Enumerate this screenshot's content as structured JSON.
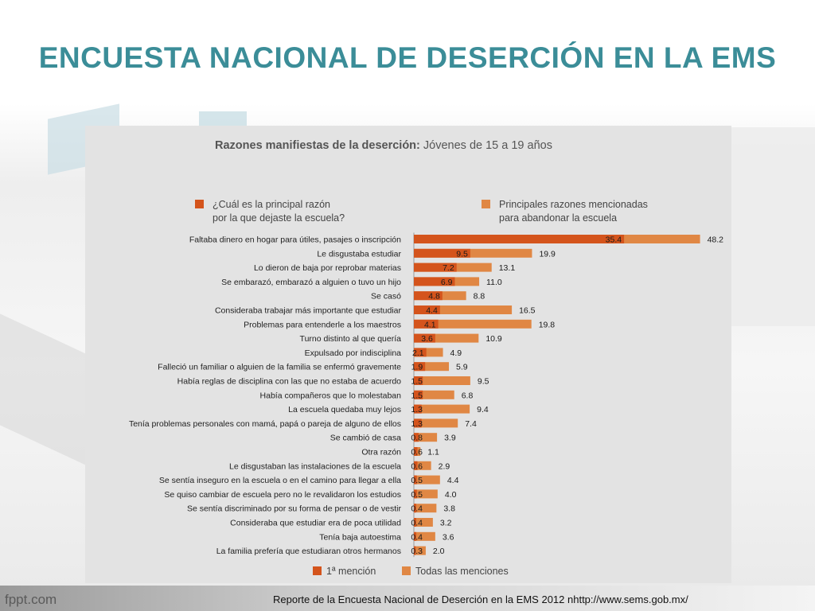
{
  "slide": {
    "title": "ENCUESTA NACIONAL DE DESERCIÓN EN LA EMS",
    "footer_logo": "fppt.com",
    "footer_source": "Reporte de la Encuesta Nacional de Deserción en la EMS 2012 nhttp://www.sems.gob.mx/"
  },
  "colors": {
    "title": "#3b8d98",
    "panel_background": "#e3e3e3",
    "series_first": "#d4541c",
    "series_all": "#e08744"
  },
  "chart_data": {
    "type": "bar",
    "orientation": "horizontal",
    "title_bold": "Razones manifiestas de la deserción:",
    "title_rest": "Jóvenes de 15 a 19 años",
    "legend_top": [
      {
        "line1": "¿Cuál es la principal razón",
        "line2": "por la que dejaste la escuela?"
      },
      {
        "line1": "Principales razones mencionadas",
        "line2": "para abandonar la escuela"
      }
    ],
    "legend_bottom": [
      "1ª mención",
      "Todas las menciones"
    ],
    "series": [
      {
        "name": "1ª mención",
        "color": "#d4541c",
        "values": [
          35.4,
          9.5,
          7.2,
          6.9,
          4.8,
          4.4,
          4.1,
          3.6,
          2.1,
          1.9,
          1.5,
          1.5,
          1.3,
          1.3,
          0.8,
          0.6,
          0.6,
          0.5,
          0.5,
          0.4,
          0.4,
          0.4,
          0.3
        ],
        "labels": [
          "35.4",
          "9.5",
          "7.2",
          "6.9",
          "4.8",
          "4.4",
          "4.1",
          "3.6",
          "2.1",
          "1.9",
          "1.5",
          "1.5",
          "1.3",
          "1.3",
          "0.8",
          "0.6",
          "0.6",
          "0.5",
          "0.5",
          "0.4",
          "0.4",
          "0.4",
          "0.3"
        ]
      },
      {
        "name": "Todas las menciones",
        "color": "#e08744",
        "values": [
          48.2,
          19.9,
          13.1,
          11.0,
          8.8,
          16.5,
          19.8,
          10.9,
          4.9,
          5.9,
          9.5,
          6.8,
          9.4,
          7.4,
          3.9,
          1.1,
          2.9,
          4.4,
          4.0,
          3.8,
          3.2,
          3.6,
          2.0
        ],
        "labels": [
          "48.2",
          "19.9",
          "13.1",
          "11.0",
          "8.8",
          "16.5",
          "19.8",
          "10.9",
          "4.9",
          "5.9",
          "9.5",
          "6.8",
          "9.4",
          "7.4",
          "3.9",
          "1.1",
          "2.9",
          "4.4",
          "4.0",
          "3.8",
          "3.2",
          "3.6",
          "2.0"
        ]
      }
    ],
    "categories": [
      "Faltaba dinero en hogar para útiles, pasajes o inscripción",
      "Le disgustaba estudiar",
      "Lo dieron de baja por reprobar materias",
      "Se embarazó, embarazó a alguien o tuvo un hijo",
      "Se casó",
      "Consideraba trabajar más importante que estudiar",
      "Problemas para entenderle a los maestros",
      "Turno distinto al que quería",
      "Expulsado por indisciplina",
      "Falleció un familiar o alguien de la familia se enfermó gravemente",
      "Había reglas de disciplina con las que no estaba de acuerdo",
      "Había compañeros que lo molestaban",
      "La escuela quedaba muy lejos",
      "Tenía problemas personales con mamá, papá o pareja de alguno de ellos",
      "Se cambió de casa",
      "Otra razón",
      "Le disgustaban las instalaciones de la escuela",
      "Se sentía inseguro en la escuela o en el camino para llegar a ella",
      "Se quiso cambiar de escuela pero no le revalidaron los estudios",
      "Se sentía discriminado por su forma de pensar o de vestir",
      "Consideraba que estudiar era de poca utilidad",
      "Tenía baja autoestima",
      "La familia prefería que estudiaran otros hermanos"
    ],
    "xlim": [
      0,
      50
    ],
    "legend_position": "top and bottom",
    "grid": false
  }
}
